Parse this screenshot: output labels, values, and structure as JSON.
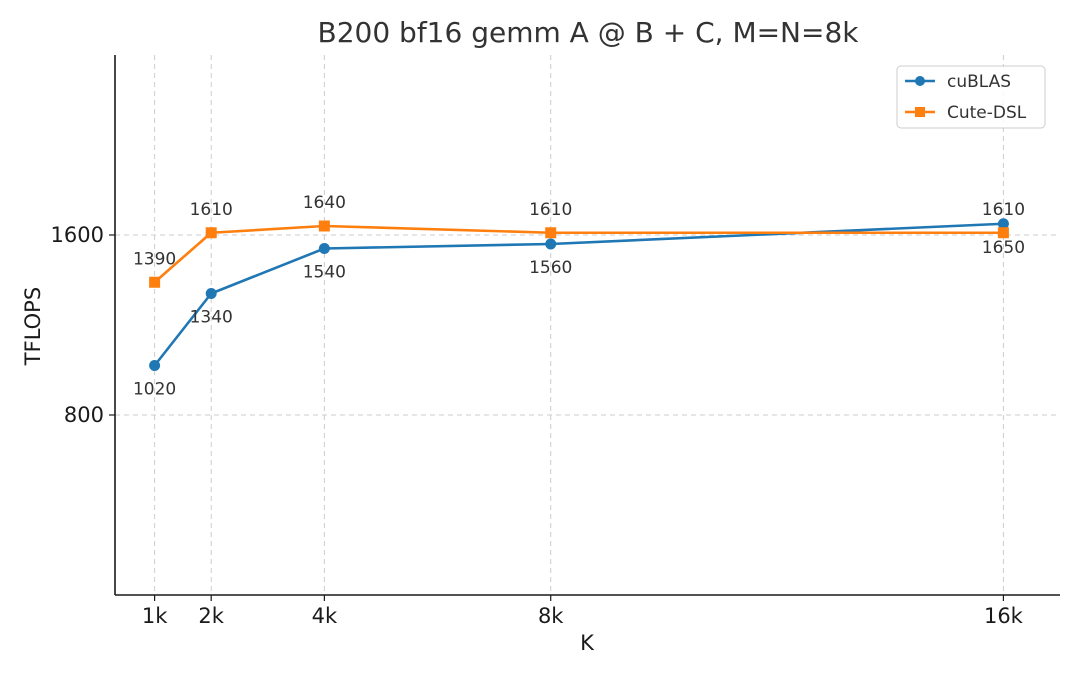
{
  "chart_data": {
    "type": "line",
    "title": "B200 bf16 gemm A @ B + C, M=N=8k",
    "xlabel": "K",
    "ylabel": "TFLOPS",
    "x": [
      1,
      2,
      4,
      8,
      16
    ],
    "x_tick_labels": [
      "1k",
      "2k",
      "4k",
      "8k",
      "16k"
    ],
    "xlim": [
      0.3,
      17.0
    ],
    "ylim": [
      0,
      2400
    ],
    "y_ticks": [
      800,
      1600
    ],
    "grid": true,
    "legend_position": "top-right",
    "series": [
      {
        "name": "cuBLAS",
        "values": [
          1020,
          1340,
          1540,
          1560,
          1650
        ],
        "color": "#1f77b4",
        "marker": "circle",
        "label_position": "below"
      },
      {
        "name": "Cute-DSL",
        "values": [
          1390,
          1610,
          1640,
          1610,
          1610
        ],
        "color": "#ff7f0e",
        "marker": "square",
        "label_position": "above"
      }
    ]
  }
}
